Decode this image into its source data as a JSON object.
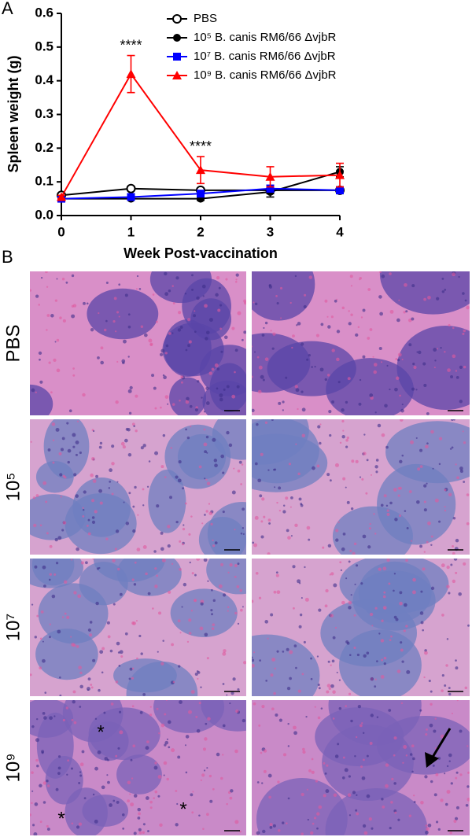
{
  "chart_data": {
    "type": "line",
    "panel_label": "A",
    "xlabel": "Week Post-vaccination",
    "ylabel": "Spleen weight (g)",
    "x": [
      0,
      1,
      2,
      3,
      4
    ],
    "xlim": [
      0,
      4
    ],
    "xticks": [
      0,
      1,
      2,
      3,
      4
    ],
    "ylim": [
      0,
      0.6
    ],
    "yticks": [
      {
        "value": 0,
        "label": "0.0"
      },
      0.1,
      0.2,
      0.3,
      0.4,
      0.5,
      0.6
    ],
    "legend": "top-right",
    "series": [
      {
        "name": "PBS",
        "color": "#000000",
        "marker": "open-circle",
        "values": [
          0.06,
          0.08,
          0.075,
          0.075,
          0.075
        ],
        "errors": [
          0.005,
          0.005,
          0.005,
          0.01,
          0.01
        ]
      },
      {
        "name": "10⁵ B. canis RM6/66 ΔvjbR",
        "color": "#000000",
        "marker": "circle",
        "values": [
          0.05,
          0.05,
          0.05,
          0.07,
          0.13
        ],
        "errors": [
          0.005,
          0.005,
          0.005,
          0.015,
          0.015
        ]
      },
      {
        "name": "10⁷ B. canis RM6/66 ΔvjbR",
        "color": "#0000ff",
        "marker": "square",
        "values": [
          0.05,
          0.055,
          0.065,
          0.08,
          0.075
        ],
        "errors": [
          0.005,
          0.005,
          0.005,
          0.01,
          0.01
        ]
      },
      {
        "name": "10⁹ B. canis RM6/66 ΔvjbR",
        "color": "#ff0000",
        "marker": "triangle",
        "values": [
          0.055,
          0.42,
          0.135,
          0.115,
          0.12
        ],
        "errors": [
          0.005,
          0.055,
          0.04,
          0.03,
          0.035
        ]
      }
    ],
    "annotations": [
      {
        "text": "****",
        "x": 1
      },
      {
        "text": "****",
        "x": 2
      }
    ]
  },
  "panel_b": {
    "label": "B",
    "rows": [
      {
        "label": "PBS"
      },
      {
        "label": "10⁵"
      },
      {
        "label": "10⁷"
      },
      {
        "label": "10⁹"
      }
    ],
    "asterisks": [
      "*",
      "*",
      "*"
    ]
  }
}
